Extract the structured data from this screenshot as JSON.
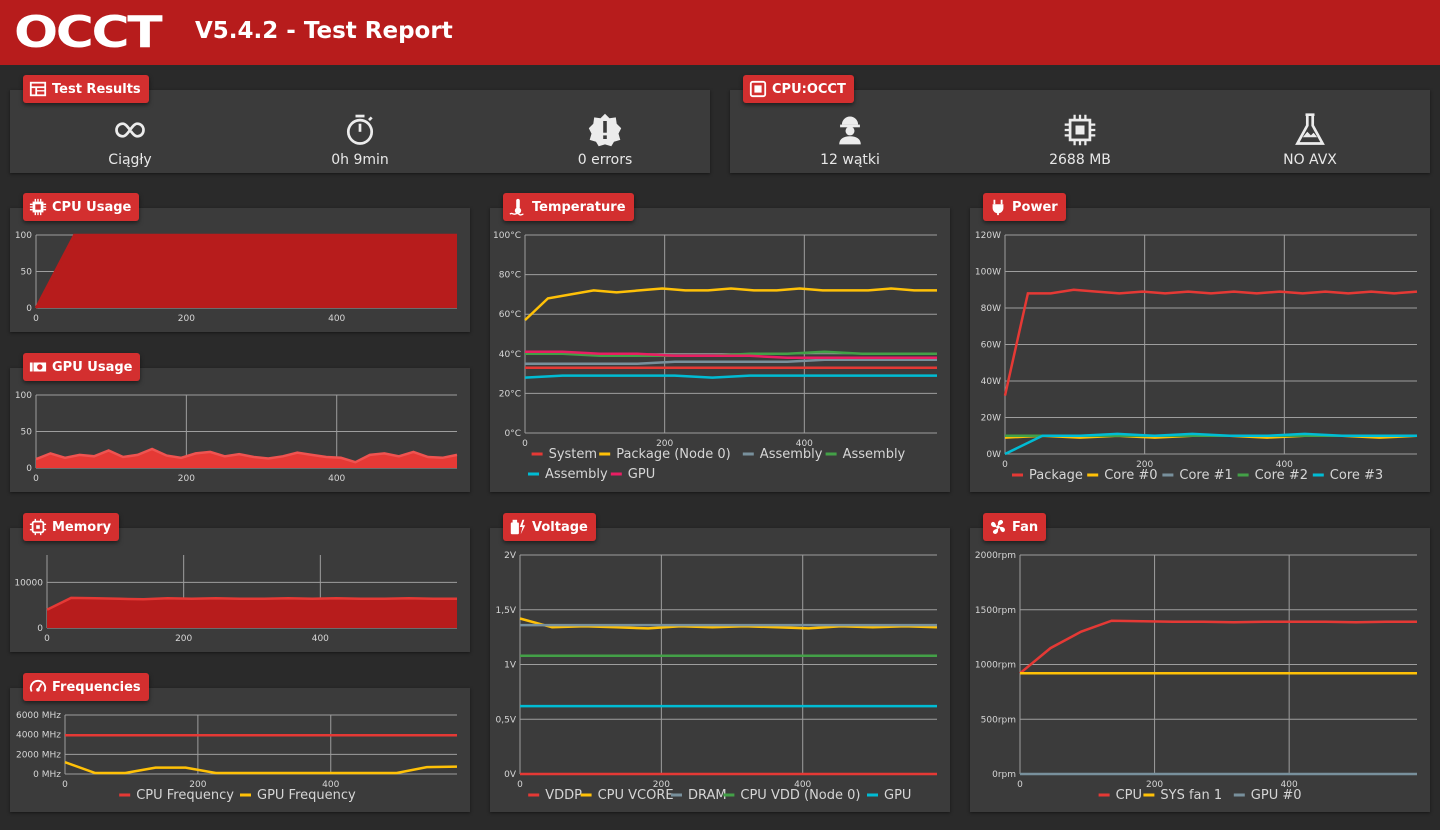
{
  "header": {
    "logo": "OCCT",
    "title": "V5.4.2 - Test Report"
  },
  "test_results": {
    "badge": "Test Results",
    "stats": [
      {
        "icon": "infinity-icon",
        "label": "Ciągły"
      },
      {
        "icon": "stopwatch-icon",
        "label": "0h 9min"
      },
      {
        "icon": "alert-badge-icon",
        "label": "0 errors"
      }
    ]
  },
  "cpu_test": {
    "badge": "CPU:OCCT",
    "stats": [
      {
        "icon": "worker-icon",
        "label": "12 wątki"
      },
      {
        "icon": "chip-icon",
        "label": "2688 MB"
      },
      {
        "icon": "flask-icon",
        "label": "NO AVX"
      }
    ]
  },
  "colors": {
    "red": "#e53935",
    "yellow": "#ffc107",
    "grey": "#78909c",
    "green": "#43a047",
    "cyan": "#00bcd4",
    "pink": "#e91e63",
    "fill": "#b71c1c"
  },
  "charts": {
    "cpu_usage": {
      "badge": "CPU Usage",
      "icon": "cpu-icon"
    },
    "gpu_usage": {
      "badge": "GPU Usage",
      "icon": "gpu-card-icon"
    },
    "memory": {
      "badge": "Memory",
      "icon": "memory-icon"
    },
    "frequencies": {
      "badge": "Frequencies",
      "icon": "speedometer-icon"
    },
    "temperature": {
      "badge": "Temperature",
      "icon": "thermometer-icon"
    },
    "voltage": {
      "badge": "Voltage",
      "icon": "battery-bolt-icon"
    },
    "power": {
      "badge": "Power",
      "icon": "plug-icon"
    },
    "fan": {
      "badge": "Fan",
      "icon": "fan-icon"
    }
  },
  "chart_data": [
    {
      "id": "cpu_usage",
      "type": "area",
      "xticks": [
        "0",
        "200",
        "400"
      ],
      "xlim": [
        0,
        560
      ],
      "yticks": [
        "0",
        "50",
        "100"
      ],
      "ylim": [
        0,
        100
      ],
      "series": [
        {
          "color": "#b71c1c",
          "fill": true,
          "line": "#b71c1c",
          "values": [
            0,
            100,
            100,
            100,
            100,
            100,
            100,
            100,
            100,
            100,
            100,
            100
          ]
        }
      ],
      "legend": []
    },
    {
      "id": "gpu_usage",
      "type": "area",
      "xticks": [
        "0",
        "200",
        "400"
      ],
      "xlim": [
        0,
        560
      ],
      "yticks": [
        "0",
        "50",
        "100"
      ],
      "ylim": [
        0,
        100
      ],
      "series": [
        {
          "color": "#e53935",
          "fill": true,
          "line": "#ef5350",
          "values": [
            12,
            20,
            14,
            18,
            16,
            24,
            15,
            18,
            26,
            17,
            14,
            20,
            22,
            16,
            19,
            15,
            13,
            16,
            21,
            18,
            15,
            14,
            8,
            18,
            20,
            16,
            22,
            15,
            14,
            18
          ]
        }
      ],
      "legend": []
    },
    {
      "id": "memory",
      "type": "area",
      "xticks": [
        "0",
        "200",
        "400"
      ],
      "xlim": [
        0,
        600
      ],
      "yticks": [
        "0",
        "10000"
      ],
      "ylim": [
        0,
        16000
      ],
      "series": [
        {
          "color": "#b71c1c",
          "fill": true,
          "line": "#e53935",
          "values": [
            4000,
            6600,
            6500,
            6400,
            6300,
            6500,
            6400,
            6500,
            6400,
            6400,
            6500,
            6400,
            6500,
            6400,
            6400,
            6500,
            6400,
            6400
          ]
        }
      ],
      "legend": []
    },
    {
      "id": "frequencies",
      "type": "line",
      "xticks": [
        "0",
        "200",
        "400"
      ],
      "xlim": [
        0,
        590
      ],
      "yticks": [
        "0 MHz",
        "2000 MHz",
        "4000 MHz",
        "6000 MHz"
      ],
      "ylim": [
        0,
        6000
      ],
      "series": [
        {
          "name": "CPU Frequency",
          "color": "#e53935",
          "values": [
            3950,
            3950,
            3950,
            3950,
            3950,
            3950,
            3950,
            3950,
            3950,
            3950,
            3950,
            3950
          ]
        },
        {
          "name": "GPU Frequency",
          "color": "#ffc107",
          "values": [
            1200,
            100,
            100,
            650,
            650,
            100,
            100,
            100,
            100,
            100,
            100,
            100,
            700,
            750
          ]
        }
      ],
      "legend": [
        "CPU Frequency",
        "GPU Frequency"
      ]
    },
    {
      "id": "temperature",
      "type": "line",
      "xticks": [
        "0",
        "200",
        "400"
      ],
      "xlim": [
        0,
        590
      ],
      "yticks": [
        "0°C",
        "20°C",
        "40°C",
        "60°C",
        "80°C",
        "100°C"
      ],
      "ylim": [
        0,
        100
      ],
      "series": [
        {
          "name": "System",
          "color": "#e53935",
          "values": [
            33,
            33,
            33,
            33,
            33,
            33,
            33,
            33,
            33,
            33,
            33,
            33
          ]
        },
        {
          "name": "Package (Node 0)",
          "color": "#ffc107",
          "values": [
            57,
            68,
            70,
            72,
            71,
            72,
            73,
            72,
            72,
            73,
            72,
            72,
            73,
            72,
            72,
            72,
            73,
            72,
            72
          ]
        },
        {
          "name": "Assembly",
          "color": "#78909c",
          "values": [
            35,
            35,
            35,
            35,
            36,
            36,
            36,
            36,
            37,
            37,
            37,
            37
          ]
        },
        {
          "name": "Assembly",
          "color": "#43a047",
          "values": [
            40,
            40,
            39,
            39,
            39,
            39,
            40,
            40,
            41,
            40,
            40,
            40
          ]
        },
        {
          "name": "Assembly",
          "color": "#00bcd4",
          "values": [
            28,
            29,
            29,
            29,
            29,
            28,
            29,
            29,
            29,
            29,
            29,
            29
          ]
        },
        {
          "name": "GPU",
          "color": "#e91e63",
          "values": [
            41,
            41,
            40,
            40,
            39,
            39,
            39,
            38,
            38,
            38,
            38,
            38
          ]
        }
      ],
      "legend": [
        "System",
        "Package (Node 0)",
        "Assembly",
        "Assembly",
        "Assembly",
        "GPU"
      ]
    },
    {
      "id": "voltage",
      "type": "line",
      "xticks": [
        "0",
        "200",
        "400"
      ],
      "xlim": [
        0,
        590
      ],
      "yticks": [
        "0V",
        "0,5V",
        "1V",
        "1,5V",
        "2V"
      ],
      "ylim": [
        0,
        2
      ],
      "series": [
        {
          "name": "VDDP",
          "color": "#e53935",
          "values": [
            0,
            0,
            0,
            0,
            0,
            0
          ]
        },
        {
          "name": "CPU VCORE",
          "color": "#ffc107",
          "values": [
            1.42,
            1.34,
            1.35,
            1.34,
            1.33,
            1.35,
            1.34,
            1.35,
            1.34,
            1.33,
            1.35,
            1.34,
            1.35,
            1.34
          ]
        },
        {
          "name": "DRAM",
          "color": "#78909c",
          "values": [
            1.36,
            1.36,
            1.36,
            1.36,
            1.36,
            1.36
          ]
        },
        {
          "name": "CPU VDD (Node 0)",
          "color": "#43a047",
          "values": [
            1.08,
            1.08,
            1.08,
            1.08,
            1.08,
            1.08
          ]
        },
        {
          "name": "GPU",
          "color": "#00bcd4",
          "values": [
            0.62,
            0.62,
            0.62,
            0.62,
            0.62,
            0.62
          ]
        }
      ],
      "legend": [
        "VDDP",
        "CPU VCORE",
        "DRAM",
        "CPU VDD (Node 0)",
        "GPU"
      ]
    },
    {
      "id": "power",
      "type": "line",
      "xticks": [
        "0",
        "200",
        "400"
      ],
      "xlim": [
        0,
        590
      ],
      "yticks": [
        "0W",
        "20W",
        "40W",
        "60W",
        "80W",
        "100W",
        "120W"
      ],
      "ylim": [
        0,
        120
      ],
      "series": [
        {
          "name": "Package",
          "color": "#e53935",
          "values": [
            32,
            88,
            88,
            90,
            89,
            88,
            89,
            88,
            89,
            88,
            89,
            88,
            89,
            88,
            89,
            88,
            89,
            88,
            89
          ]
        },
        {
          "name": "Core #0",
          "color": "#ffc107",
          "values": [
            9,
            10,
            9,
            10,
            9,
            10,
            10,
            9,
            10,
            10,
            9,
            10
          ]
        },
        {
          "name": "Core #1",
          "color": "#78909c",
          "values": [
            10,
            10,
            10,
            10,
            10,
            10,
            10,
            10,
            10,
            10,
            10,
            10
          ]
        },
        {
          "name": "Core #2",
          "color": "#43a047",
          "values": [
            10,
            10,
            10,
            10,
            10,
            10,
            10,
            10,
            10,
            10,
            10,
            10
          ]
        },
        {
          "name": "Core #3",
          "color": "#00bcd4",
          "values": [
            0,
            10,
            10,
            11,
            10,
            11,
            10,
            10,
            11,
            10,
            10,
            10
          ]
        }
      ],
      "legend": [
        "Package",
        "Core #0",
        "Core #1",
        "Core #2",
        "Core #3"
      ]
    },
    {
      "id": "fan",
      "type": "line",
      "xticks": [
        "0",
        "200",
        "400"
      ],
      "xlim": [
        0,
        590
      ],
      "yticks": [
        "0rpm",
        "500rpm",
        "1000rpm",
        "1500rpm",
        "2000rpm"
      ],
      "ylim": [
        0,
        2000
      ],
      "series": [
        {
          "name": "CPU",
          "color": "#e53935",
          "values": [
            920,
            1150,
            1300,
            1400,
            1395,
            1390,
            1390,
            1385,
            1390,
            1390,
            1390,
            1385,
            1390,
            1390
          ]
        },
        {
          "name": "SYS fan 1",
          "color": "#ffc107",
          "values": [
            920,
            920,
            920,
            920,
            920,
            920,
            920,
            920
          ]
        },
        {
          "name": "GPU #0",
          "color": "#78909c",
          "values": [
            0,
            0,
            0,
            0,
            0,
            0
          ]
        }
      ],
      "legend": [
        "CPU",
        "SYS fan 1",
        "GPU #0"
      ]
    }
  ]
}
